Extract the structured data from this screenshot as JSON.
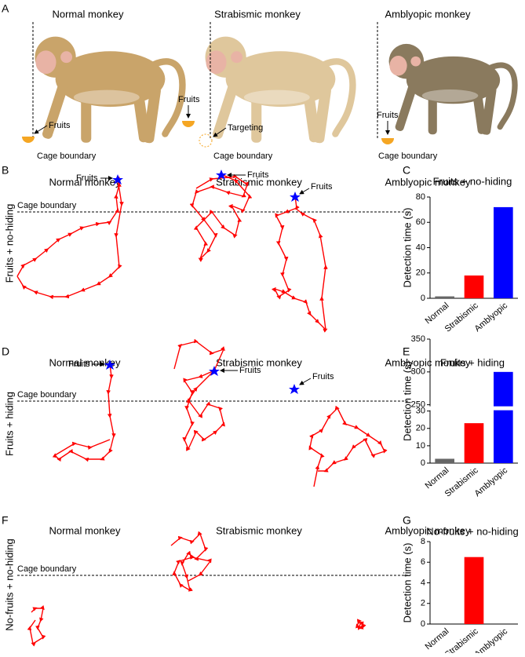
{
  "panel_a": {
    "letter": "A",
    "monkeys": [
      "Normal monkey",
      "Strabismic monkey",
      "Amblyopic monkey"
    ],
    "fruits": "Fruits",
    "targeting": "Targeting",
    "cage_boundary": "Cage boundary"
  },
  "trajectory_rows": [
    {
      "letter": "B",
      "condition": "Fruits + no-hiding"
    },
    {
      "letter": "D",
      "condition": "Fruits + hiding"
    },
    {
      "letter": "F",
      "condition": "No-fruits + no-hiding"
    }
  ],
  "chart_data": [
    {
      "type": "bar",
      "panel_letter": "C",
      "title": "Fruits + no-hiding",
      "ylabel": "Detection time (s)",
      "categories": [
        "Normal",
        "Strabismic",
        "Amblyopic"
      ],
      "values": [
        1.5,
        18,
        72
      ],
      "colors": [
        "#666666",
        "#ff0000",
        "#0000ff"
      ],
      "ylim": [
        0,
        80
      ],
      "yticks": [
        0,
        20,
        40,
        60,
        80
      ]
    },
    {
      "type": "bar",
      "panel_letter": "E",
      "title": "Fruits + hiding",
      "ylabel": "Detection time (s)",
      "categories": [
        "Normal",
        "Strabismic",
        "Amblyopic"
      ],
      "values": [
        2.5,
        23,
        300
      ],
      "colors": [
        "#666666",
        "#ff0000",
        "#0000ff"
      ],
      "ylim": [
        0,
        350
      ],
      "ybreak": [
        30,
        250
      ],
      "yticks": [
        0,
        10,
        20,
        30,
        250,
        300,
        350
      ]
    },
    {
      "type": "bar",
      "panel_letter": "G",
      "title": "No-fruits + no-hiding",
      "ylabel": "Detection time (s)",
      "categories": [
        "Normal",
        "Strabismic",
        "Amblyopic"
      ],
      "values": [
        0,
        6.5,
        0
      ],
      "colors": [
        "#666666",
        "#ff0000",
        "#0000ff"
      ],
      "ylim": [
        0,
        8
      ],
      "yticks": [
        0,
        2,
        4,
        6,
        8
      ]
    }
  ]
}
